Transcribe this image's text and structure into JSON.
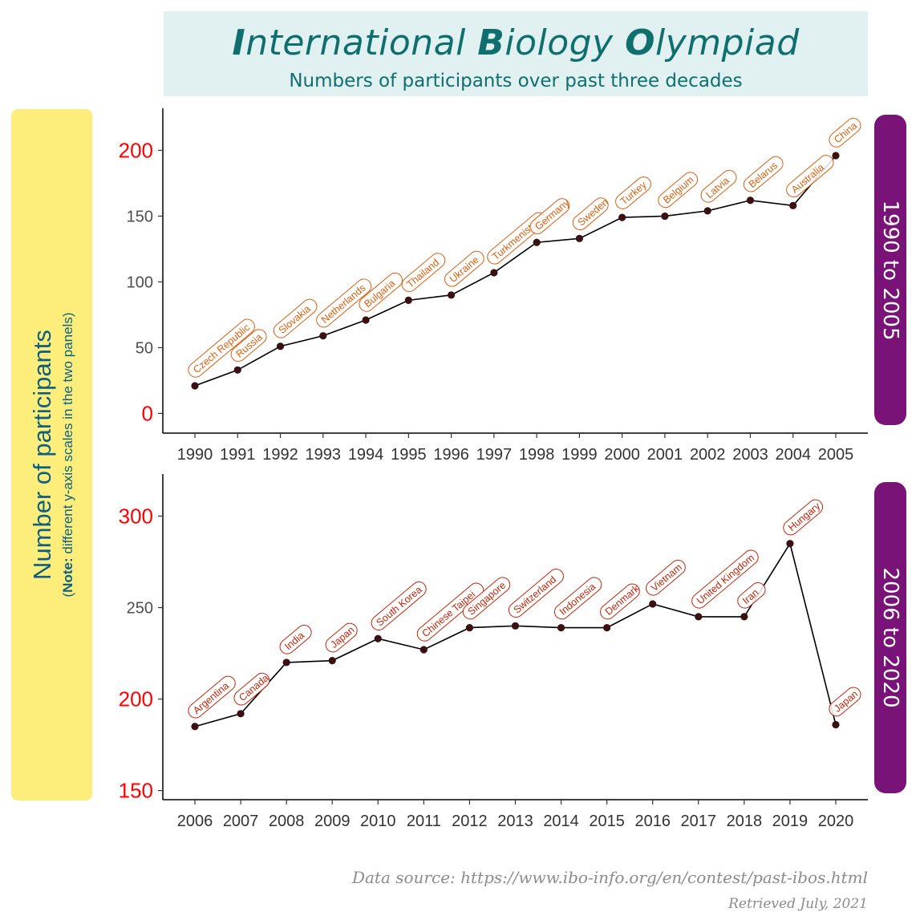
{
  "title": {
    "initial1": "I",
    "rest1": "nternational ",
    "initial2": "B",
    "rest2": "iology ",
    "initial3": "O",
    "rest3": "lympiad"
  },
  "subtitle": "Numbers of participants over past three decades",
  "ylabel": "Number of participants",
  "ynote_prefix": "(",
  "ynote_bold": "Note:",
  "ynote_rest": " different y-axis scales in the two panels)",
  "source": "Data source: https://www.ibo-info.org/en/contest/past-ibos.html",
  "retrieved": "Retrieved July, 2021",
  "colors": {
    "line": "#000000",
    "point": "#3a1010",
    "label_top": "#d95f0e",
    "label_bottom": "#c0250a",
    "tick_major": "#ff0000",
    "tick": "#4d4d4d"
  },
  "chart_data": [
    {
      "type": "line",
      "panel": "1990 to 2005",
      "x": [
        "1990",
        "1991",
        "1992",
        "1993",
        "1994",
        "1995",
        "1996",
        "1997",
        "1998",
        "1999",
        "2000",
        "2001",
        "2002",
        "2003",
        "2004",
        "2005"
      ],
      "y": [
        21,
        33,
        51,
        59,
        71,
        86,
        90,
        107,
        130,
        133,
        149,
        150,
        154,
        162,
        158,
        196
      ],
      "labels": [
        "Czech Republic",
        "Russia",
        "Slovakia",
        "Netherlands",
        "Bulgaria",
        "Thailand",
        "Ukraine",
        "Turkmenistan",
        "Germany",
        "Sweden",
        "Turkey",
        "Belgium",
        "Latvia",
        "Belarus",
        "Australia",
        "China"
      ],
      "ylim": [
        -15,
        232
      ],
      "yticks": [
        0,
        50,
        100,
        150,
        200
      ]
    },
    {
      "type": "line",
      "panel": "2006 to 2020",
      "x": [
        "2006",
        "2007",
        "2008",
        "2009",
        "2010",
        "2011",
        "2012",
        "2013",
        "2014",
        "2015",
        "2016",
        "2017",
        "2018",
        "2019",
        "2020"
      ],
      "y": [
        185,
        192,
        220,
        221,
        233,
        227,
        239,
        240,
        239,
        239,
        252,
        245,
        245,
        285,
        186
      ],
      "labels": [
        "Argentina",
        "Canada",
        "India",
        "Japan",
        "South Korea",
        "Chinese Taipei",
        "Singapore",
        "Switzerland",
        "Indonesia",
        "Denmark",
        "Vietnam",
        "United Kingdom",
        "Iran",
        "Hungary",
        "Japan"
      ],
      "ylim": [
        145,
        323
      ],
      "yticks": [
        150,
        200,
        250,
        300
      ]
    }
  ]
}
